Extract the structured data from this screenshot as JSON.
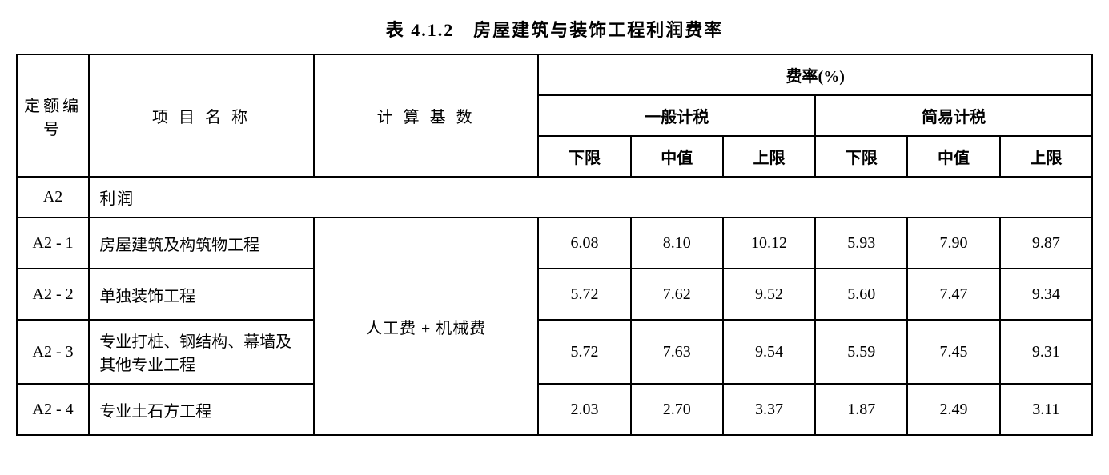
{
  "title": "表 4.1.2　房屋建筑与装饰工程利润费率",
  "headers": {
    "code": "定额编号",
    "name": "项 目 名 称",
    "basis": "计 算 基 数",
    "rate": "费率(%)",
    "general": "一般计税",
    "simple": "简易计税",
    "lower": "下限",
    "mid": "中值",
    "upper": "上限"
  },
  "section": {
    "code": "A2",
    "label": "利润"
  },
  "basis_text": "人工费 + 机械费",
  "rows": [
    {
      "code": "A2 - 1",
      "name": "房屋建筑及构筑物工程",
      "g_low": "6.08",
      "g_mid": "8.10",
      "g_up": "10.12",
      "s_low": "5.93",
      "s_mid": "7.90",
      "s_up": "9.87"
    },
    {
      "code": "A2 - 2",
      "name": "单独装饰工程",
      "g_low": "5.72",
      "g_mid": "7.62",
      "g_up": "9.52",
      "s_low": "5.60",
      "s_mid": "7.47",
      "s_up": "9.34"
    },
    {
      "code": "A2 - 3",
      "name": "专业打桩、钢结构、幕墙及其他专业工程",
      "g_low": "5.72",
      "g_mid": "7.63",
      "g_up": "9.54",
      "s_low": "5.59",
      "s_mid": "7.45",
      "s_up": "9.31"
    },
    {
      "code": "A2 - 4",
      "name": "专业土石方工程",
      "g_low": "2.03",
      "g_mid": "2.70",
      "g_up": "3.37",
      "s_low": "1.87",
      "s_mid": "2.49",
      "s_up": "3.11"
    }
  ],
  "styling": {
    "border_color": "#000000",
    "background_color": "#ffffff",
    "font_family": "SimSun",
    "title_fontsize": 22,
    "cell_fontsize": 20,
    "border_width": 2
  }
}
